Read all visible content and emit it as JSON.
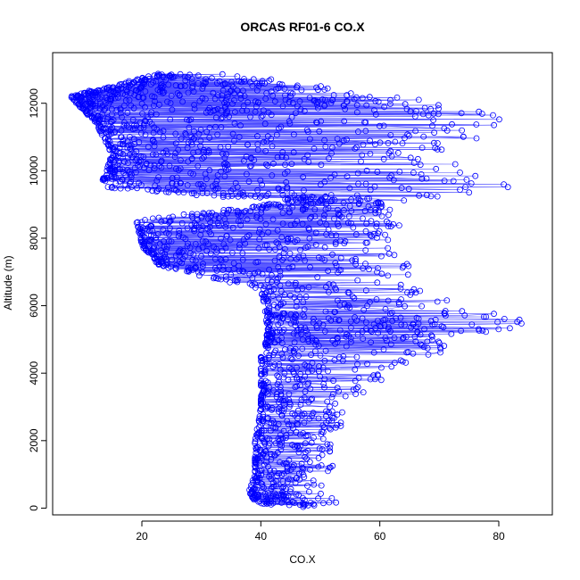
{
  "chart_data": {
    "type": "scatter",
    "title": "ORCAS RF01-6 CO.X",
    "xlabel": "CO.X",
    "ylabel": "Altitude (m)",
    "xlim": [
      5,
      89
    ],
    "ylim": [
      -200,
      13500
    ],
    "x_ticks": [
      20,
      40,
      60,
      80
    ],
    "y_ticks": [
      0,
      2000,
      4000,
      6000,
      8000,
      10000,
      12000
    ],
    "x_tick_labels": [
      "20",
      "40",
      "60",
      "80"
    ],
    "y_tick_labels": [
      "0",
      "2000",
      "4000",
      "6000",
      "8000",
      "10000",
      "12000"
    ],
    "grid": false,
    "legend": "none",
    "marker": "open-circle",
    "connected": true,
    "color": "#0000ff",
    "series": [
      {
        "profile": [
          {
            "alt": 12200,
            "x_min": 8,
            "x_max": 62,
            "density": 3.0
          },
          {
            "alt": 12850,
            "x_min": 23,
            "x_max": 37,
            "density": 1.4
          },
          {
            "alt": 11500,
            "x_min": 12,
            "x_max": 86,
            "density": 1.4
          },
          {
            "alt": 10500,
            "x_min": 15,
            "x_max": 68,
            "density": 1.4
          },
          {
            "alt": 9500,
            "x_min": 13,
            "x_max": 86,
            "density": 1.3
          },
          {
            "alt": 9100,
            "x_min": 47,
            "x_max": 61,
            "density": 1.6
          },
          {
            "alt": 8500,
            "x_min": 19,
            "x_max": 64,
            "density": 1.3
          },
          {
            "alt": 7800,
            "x_min": 20,
            "x_max": 62,
            "density": 1.1
          },
          {
            "alt": 7200,
            "x_min": 23,
            "x_max": 66,
            "density": 1.1
          },
          {
            "alt": 6500,
            "x_min": 40,
            "x_max": 67,
            "density": 1.0
          },
          {
            "alt": 5500,
            "x_min": 41,
            "x_max": 85,
            "density": 1.1
          },
          {
            "alt": 5000,
            "x_min": 41,
            "x_max": 74,
            "density": 1.1
          },
          {
            "alt": 4500,
            "x_min": 40,
            "x_max": 72,
            "density": 1.0
          },
          {
            "alt": 4000,
            "x_min": 40,
            "x_max": 62,
            "density": 1.0
          },
          {
            "alt": 3000,
            "x_min": 40,
            "x_max": 55,
            "density": 1.0
          },
          {
            "alt": 2000,
            "x_min": 39,
            "x_max": 53,
            "density": 1.0
          },
          {
            "alt": 1000,
            "x_min": 39,
            "x_max": 52,
            "density": 1.0
          },
          {
            "alt": 500,
            "x_min": 38,
            "x_max": 50,
            "density": 1.0
          },
          {
            "alt": 200,
            "x_min": 39,
            "x_max": 53,
            "density": 1.3
          },
          {
            "alt": 50,
            "x_min": 42,
            "x_max": 55,
            "density": 0.9
          }
        ]
      }
    ]
  }
}
